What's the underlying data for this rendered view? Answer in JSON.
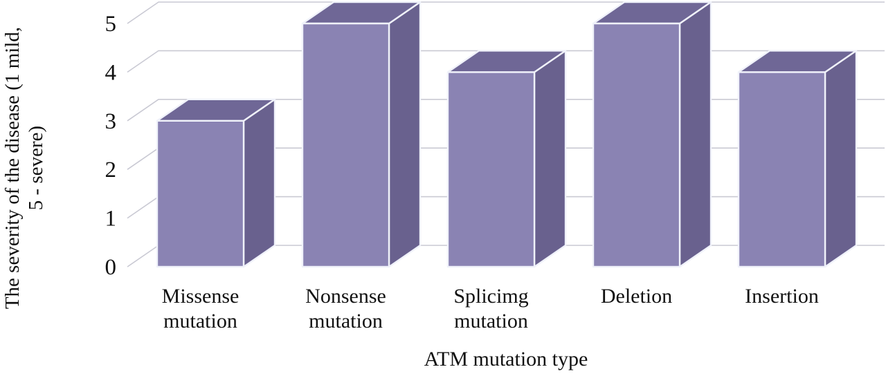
{
  "chart_data": {
    "type": "bar",
    "variant": "3d-column",
    "title": "",
    "xlabel": "ATM mutation type",
    "ylabel": "The severity of the disease (1 mild, 5 - severe)",
    "ylabel_lines": [
      "The severity of the disease (1 mild,",
      "5 - severe)"
    ],
    "categories": [
      "Missense mutation",
      "Nonsense mutation",
      "Splicimg mutation",
      "Deletion",
      "Insertion"
    ],
    "category_lines": [
      [
        "Missense",
        "mutation"
      ],
      [
        "Nonsense",
        "mutation"
      ],
      [
        "Splicimg",
        "mutation"
      ],
      [
        "Deletion"
      ],
      [
        "Insertion"
      ]
    ],
    "values": [
      3,
      5,
      4,
      5,
      4
    ],
    "yticks": [
      0,
      1,
      2,
      3,
      4,
      5
    ],
    "ylim": [
      0,
      5
    ],
    "grid": true,
    "legend": "none",
    "colors": {
      "bar_front": "#8a83b3",
      "bar_side": "#69618e",
      "bar_top": "#6f6796",
      "bar_outline": "#f0f2fa",
      "gridline": "#c9c9d3",
      "text": "#111111",
      "background": "#ffffff"
    }
  }
}
